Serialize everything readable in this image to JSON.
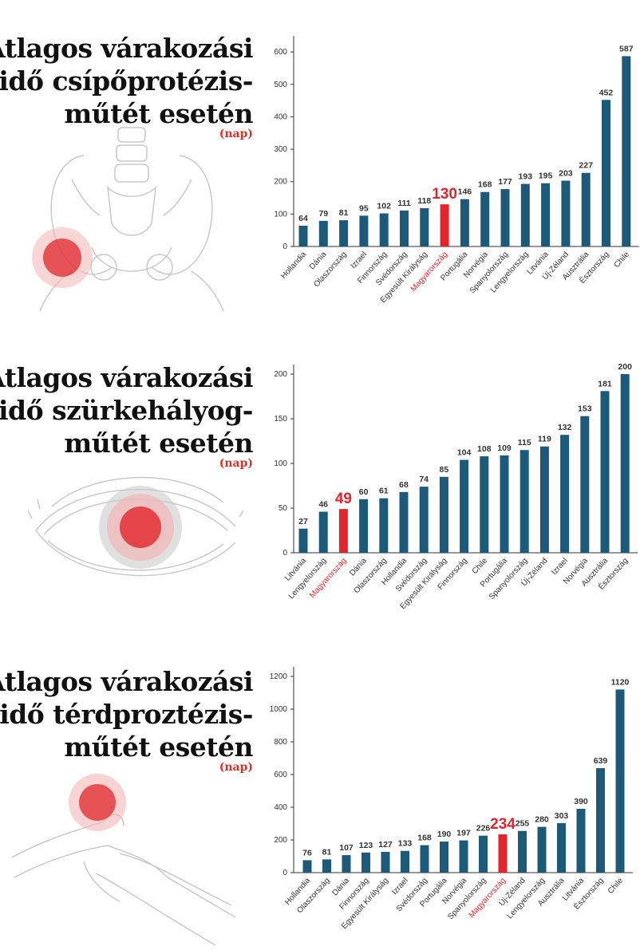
{
  "colors": {
    "bar": "#1d5a7a",
    "highlight": "#e0262a",
    "title": "#111111",
    "unit": "#d9312b",
    "axis": "#333333"
  },
  "charts": [
    {
      "title_lines": [
        "Átlagos várakozási",
        "idő csípőprotézis-",
        "műtét esetén"
      ],
      "unit": "(nap)",
      "illustration": "hip-pelvis-icon"
    },
    {
      "title_lines": [
        "Átlagos várakozási",
        "idő szürkehályog-",
        "műtét esetén"
      ],
      "unit": "(nap)",
      "illustration": "eye-icon"
    },
    {
      "title_lines": [
        "Átlagos várakozási",
        "idő térdproztézis-",
        "műtét esetén"
      ],
      "unit": "(nap)",
      "illustration": "knee-icon"
    }
  ],
  "chart_data": [
    {
      "type": "bar",
      "title": "Átlagos várakozási idő csípőprotézis-műtét esetén",
      "unit": "(nap)",
      "categories": [
        "Hollandia",
        "Dánia",
        "Olaszország",
        "Izrael",
        "Finnország",
        "Svédország",
        "Egyesült Királyság",
        "Magyarország",
        "Portugália",
        "Norvégia",
        "Spanyolország",
        "Lengyelország",
        "Litvánia",
        "Új-Zéland",
        "Ausztrália",
        "Észtország",
        "Chile"
      ],
      "values": [
        64,
        79,
        81,
        95,
        102,
        111,
        118,
        130,
        146,
        168,
        177,
        193,
        195,
        203,
        227,
        452,
        587
      ],
      "highlight": "Magyarország",
      "yticks": [
        "0",
        "100",
        "200",
        "300",
        "400",
        "500",
        "600"
      ],
      "ylim": [
        0,
        620
      ],
      "grid": false
    },
    {
      "type": "bar",
      "title": "Átlagos várakozási idő szürkehályog-műtét esetén",
      "unit": "(nap)",
      "categories": [
        "Litvánia",
        "Lengyelország",
        "Magyarország",
        "Dánia",
        "Olaszország",
        "Hollandia",
        "Svédország",
        "Egyesült Királyság",
        "Finnország",
        "Chile",
        "Portugália",
        "Spanyolország",
        "Új-Zéland",
        "Izrael",
        "Norvégia",
        "Ausztrália",
        "Észtország"
      ],
      "values": [
        27,
        46,
        49,
        60,
        61,
        68,
        74,
        85,
        104,
        108,
        109,
        115,
        119,
        132,
        153,
        181,
        200
      ],
      "highlight": "Magyarország",
      "yticks": [
        "0",
        "50",
        "100",
        "150",
        "200"
      ],
      "ylim": [
        0,
        200
      ],
      "grid": false
    },
    {
      "type": "bar",
      "title": "Átlagos várakozási idő térdproztézis-műtét esetén",
      "unit": "(nap)",
      "categories": [
        "Hollandia",
        "Olaszország",
        "Dánia",
        "Finnország",
        "Egyesült Királyság",
        "Izrael",
        "Svédország",
        "Portugália",
        "Norvégia",
        "Spanyolország",
        "Magyarország",
        "Új-Zéland",
        "Lengyelország",
        "Ausztrália",
        "Litvánia",
        "Észtország",
        "Chile"
      ],
      "values": [
        76,
        81,
        107,
        123,
        127,
        133,
        168,
        190,
        197,
        226,
        234,
        255,
        280,
        303,
        390,
        639,
        1120
      ],
      "highlight": "Magyarország",
      "yticks": [
        "0",
        "200",
        "400",
        "600",
        "800",
        "1000",
        "1200"
      ],
      "ylim": [
        0,
        1200
      ],
      "grid": false
    }
  ]
}
